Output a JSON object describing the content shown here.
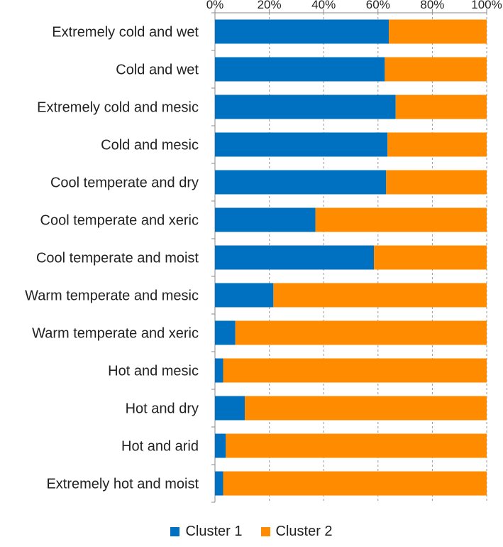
{
  "chart_data": {
    "type": "bar",
    "orientation": "horizontal",
    "stacked": "percent",
    "categories": [
      "Extremely cold and wet",
      "Cold and wet",
      "Extremely cold and mesic",
      "Cold and mesic",
      "Cool temperate and dry",
      "Cool temperate and xeric",
      "Cool temperate and moist",
      "Warm temperate and mesic",
      "Warm temperate and xeric",
      "Hot and mesic",
      "Hot and dry",
      "Hot and arid",
      "Extremely hot and moist"
    ],
    "series": [
      {
        "name": "Cluster 1",
        "color": "#0070c0",
        "values": [
          64,
          62.5,
          66.5,
          63.5,
          63,
          37,
          58.5,
          21.5,
          7.5,
          3,
          11,
          4,
          3
        ]
      },
      {
        "name": "Cluster 2",
        "color": "#ff8c00",
        "values": [
          36,
          37.5,
          33.5,
          36.5,
          37,
          63,
          41.5,
          78.5,
          92.5,
          97,
          89,
          96,
          97
        ]
      }
    ],
    "x_ticks": [
      "0%",
      "20%",
      "40%",
      "60%",
      "80%",
      "100%"
    ],
    "xlim": [
      0,
      100
    ],
    "axis_position": "top",
    "grid": "vertical dashed",
    "legend": "bottom",
    "title": "",
    "xlabel": "",
    "ylabel": ""
  }
}
